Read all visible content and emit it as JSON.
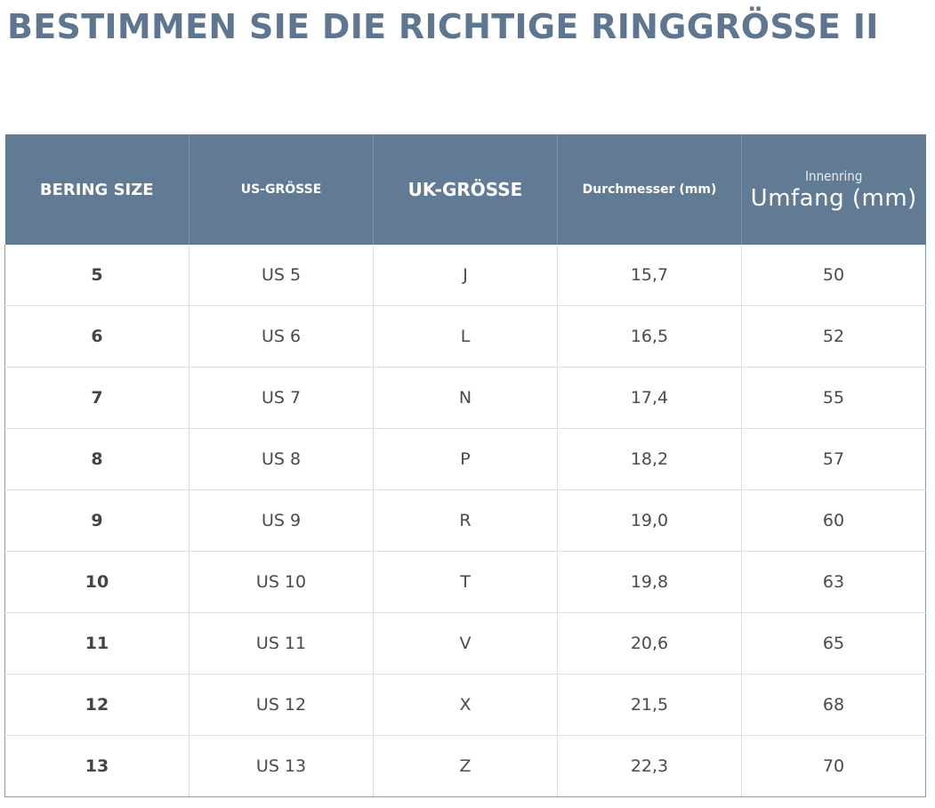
{
  "title": "BESTIMMEN SIE DIE RICHTIGE RINGGRÖSSE II",
  "headers": {
    "bering": "BERING SIZE",
    "us": "US-GRÖSSE",
    "uk": "UK-GRÖSSE",
    "diameter": "Durchmesser (mm)",
    "inner_small": "Innenring",
    "inner_large": "Umfang (mm)"
  },
  "rows": [
    {
      "bering": "5",
      "us": "US 5",
      "uk": "J",
      "diameter": "15,7",
      "umfang": "50"
    },
    {
      "bering": "6",
      "us": "US 6",
      "uk": "L",
      "diameter": "16,5",
      "umfang": "52"
    },
    {
      "bering": "7",
      "us": "US 7",
      "uk": "N",
      "diameter": "17,4",
      "umfang": "55"
    },
    {
      "bering": "8",
      "us": "US 8",
      "uk": "P",
      "diameter": "18,2",
      "umfang": "57"
    },
    {
      "bering": "9",
      "us": "US 9",
      "uk": "R",
      "diameter": "19,0",
      "umfang": "60"
    },
    {
      "bering": "10",
      "us": "US 10",
      "uk": "T",
      "diameter": "19,8",
      "umfang": "63"
    },
    {
      "bering": "11",
      "us": "US 11",
      "uk": "V",
      "diameter": "20,6",
      "umfang": "65"
    },
    {
      "bering": "12",
      "us": "US 12",
      "uk": "X",
      "diameter": "21,5",
      "umfang": "68"
    },
    {
      "bering": "13",
      "us": "US 13",
      "uk": "Z",
      "diameter": "22,3",
      "umfang": "70"
    }
  ],
  "colors": {
    "title": "#5f7691",
    "header_bg": "#627b95",
    "header_text": "#ffffff",
    "cell_text": "#4a4a4a",
    "grid": "#dcdfe4"
  }
}
